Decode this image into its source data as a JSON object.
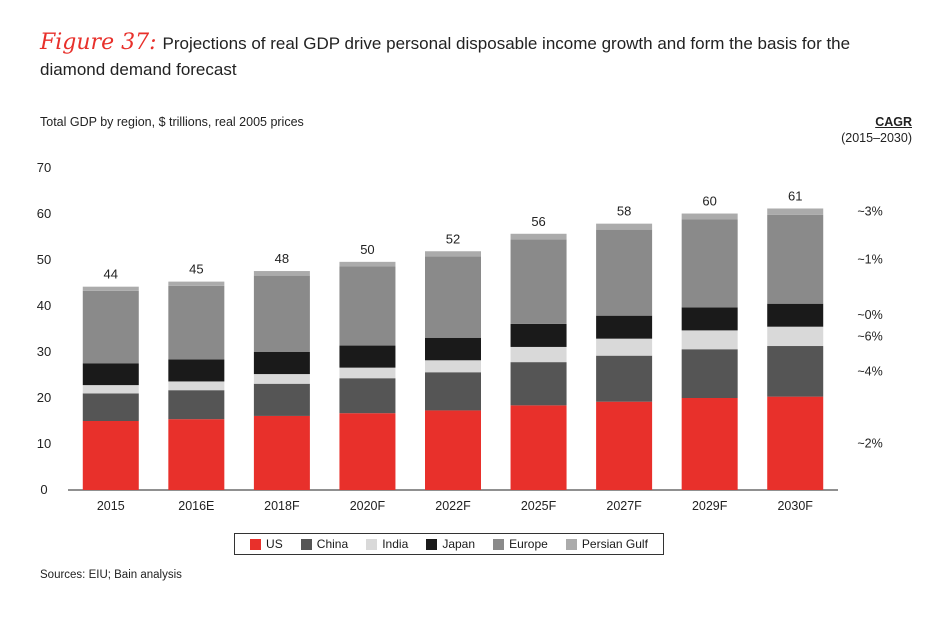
{
  "figure": {
    "label": "Figure 37:",
    "title": "Projections of real GDP drive personal disposable income growth and form the basis for the diamond demand forecast",
    "subtitle": "Total GDP by region, $ trillions, real 2005 prices",
    "source": "Sources: EIU; Bain analysis"
  },
  "cagr": {
    "title": "CAGR",
    "period": "(2015–2030)"
  },
  "chart_data": {
    "type": "bar",
    "stacked": true,
    "title": "",
    "xlabel": "",
    "ylabel": "",
    "ylim": [
      0,
      70
    ],
    "yticks": [
      "0",
      "10",
      "20",
      "30",
      "40",
      "50",
      "60",
      "70"
    ],
    "grid": false,
    "legend_position": "bottom",
    "categories": [
      "2015",
      "2016E",
      "2018F",
      "2020F",
      "2022F",
      "2025F",
      "2027F",
      "2029F",
      "2030F"
    ],
    "totals": [
      "44",
      "45",
      "48",
      "50",
      "52",
      "56",
      "58",
      "60",
      "61"
    ],
    "series": [
      {
        "name": "US",
        "color": "#e8302b",
        "values": [
          15.0,
          15.4,
          16.1,
          16.7,
          17.3,
          18.4,
          19.2,
          20.0,
          20.3
        ],
        "cagr": "~2%"
      },
      {
        "name": "China",
        "color": "#555555",
        "values": [
          6.0,
          6.3,
          7.0,
          7.6,
          8.3,
          9.4,
          10.0,
          10.6,
          11.0
        ],
        "cagr": "~4%"
      },
      {
        "name": "India",
        "color": "#d9d9d9",
        "values": [
          1.8,
          1.9,
          2.1,
          2.3,
          2.6,
          3.3,
          3.7,
          4.1,
          4.2
        ],
        "cagr": "~6%"
      },
      {
        "name": "Japan",
        "color": "#1a1a1a",
        "values": [
          4.7,
          4.8,
          4.8,
          4.8,
          4.9,
          5.0,
          5.0,
          5.0,
          5.0
        ],
        "cagr": "~0%"
      },
      {
        "name": "Europe",
        "color": "#8a8a8a",
        "values": [
          15.8,
          16.0,
          16.6,
          17.2,
          17.7,
          18.4,
          18.7,
          19.1,
          19.3
        ],
        "cagr": "~1%"
      },
      {
        "name": "Persian Gulf",
        "color": "#ababab",
        "values": [
          0.9,
          0.9,
          1.0,
          1.0,
          1.1,
          1.2,
          1.3,
          1.3,
          1.4
        ],
        "cagr": "~3%"
      }
    ]
  }
}
